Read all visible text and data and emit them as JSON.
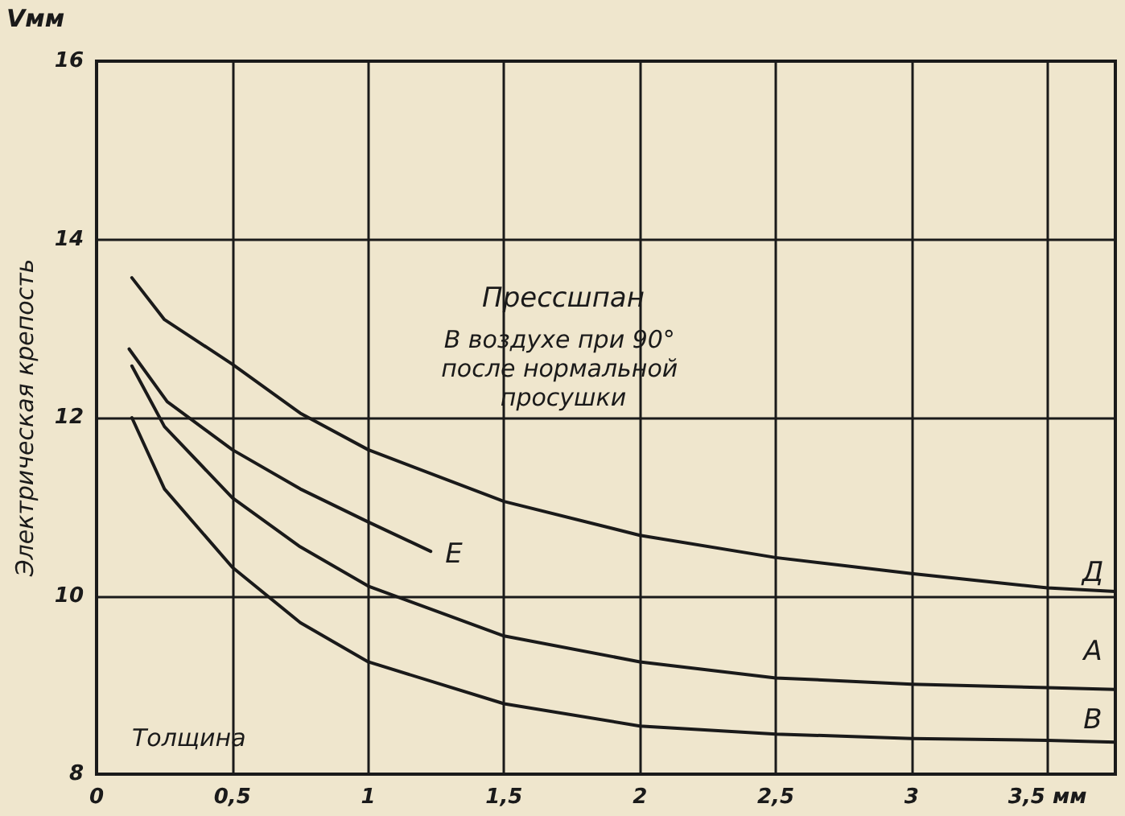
{
  "chart_data": {
    "type": "line",
    "title": "Прессшпан",
    "subtitle": "В воздухе при 90° после нормальной просушки",
    "xlabel": "Толщина",
    "ylabel": "Электрическая крепость",
    "annotations": [
      "Vмм"
    ],
    "xlim": [
      0,
      3.75
    ],
    "xticks": [
      0,
      {
        "value": 0.5,
        "label": "0,5"
      },
      1,
      {
        "value": 1.5,
        "label": "1,5"
      },
      2,
      {
        "value": 2.5,
        "label": "2,5"
      },
      3,
      {
        "value": 3.5,
        "label": "3,5 мм"
      }
    ],
    "ylim": [
      8,
      16
    ],
    "yticks": [
      8,
      10,
      12,
      14,
      16
    ],
    "grid": true,
    "legend": false,
    "marker": "none",
    "line_style": "solid",
    "series": [
      {
        "name": "Д",
        "color": "#1a1a1a",
        "x": [
          0.13,
          0.25,
          0.5,
          0.75,
          1,
          1.5,
          2,
          2.5,
          3,
          3.5,
          3.75
        ],
        "values": [
          13.57,
          13.1,
          12.6,
          12.05,
          11.64,
          11.06,
          10.68,
          10.43,
          10.25,
          10.09,
          10.05
        ]
      },
      {
        "name": "Е",
        "color": "#1a1a1a",
        "x": [
          0.12,
          0.26,
          0.5,
          0.75,
          1,
          1.23
        ],
        "values": [
          12.77,
          12.18,
          11.64,
          11.2,
          10.83,
          10.5
        ]
      },
      {
        "name": "А",
        "color": "#1a1a1a",
        "x": [
          0.13,
          0.25,
          0.5,
          0.75,
          1,
          1.5,
          2,
          2.5,
          3,
          3.5,
          3.75
        ],
        "values": [
          12.58,
          11.9,
          11.1,
          10.55,
          10.11,
          9.55,
          9.26,
          9.08,
          9.01,
          8.97,
          8.95
        ]
      },
      {
        "name": "В",
        "color": "#1a1a1a",
        "x": [
          0.13,
          0.25,
          0.5,
          0.75,
          1,
          1.5,
          2,
          2.5,
          3,
          3.5,
          3.75
        ],
        "values": [
          12,
          11.2,
          10.32,
          9.7,
          9.26,
          8.79,
          8.54,
          8.45,
          8.4,
          8.38,
          8.36
        ]
      }
    ]
  }
}
